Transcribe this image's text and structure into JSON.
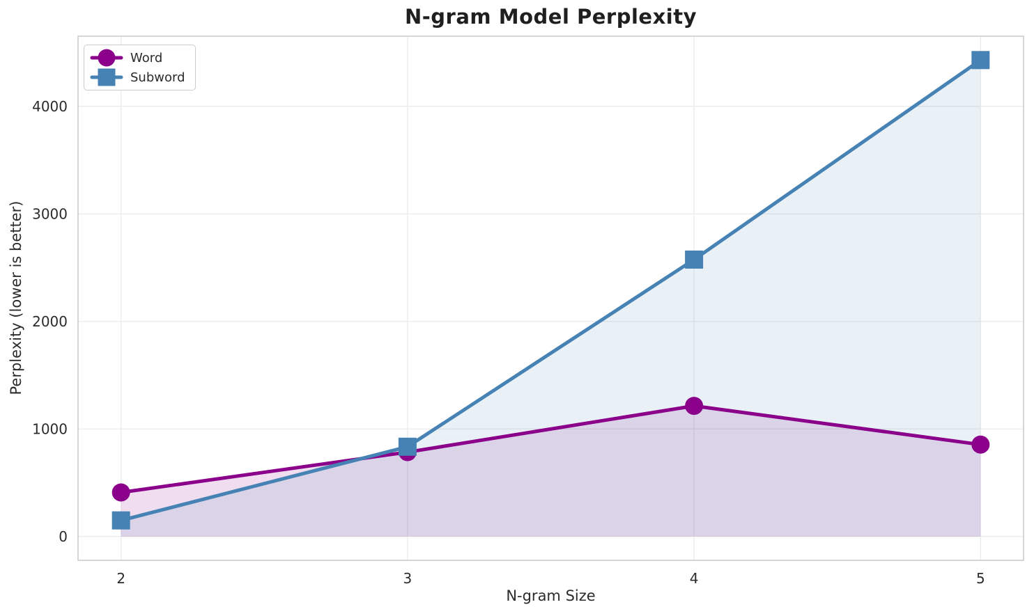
{
  "chart_data": {
    "type": "line",
    "title": "N-gram Model Perplexity",
    "xlabel": "N-gram Size",
    "ylabel": "Perplexity (lower is better)",
    "x": [
      2,
      3,
      4,
      5
    ],
    "series": [
      {
        "name": "Word",
        "values": [
          410,
          785,
          1215,
          855
        ],
        "color": "#8B008B",
        "marker": "circle",
        "fill_alpha": 0.13
      },
      {
        "name": "Subword",
        "values": [
          150,
          835,
          2575,
          4430
        ],
        "color": "#4682B4",
        "marker": "square",
        "fill_alpha": 0.12
      }
    ],
    "xticks": [
      2,
      3,
      4,
      5
    ],
    "yticks": [
      0,
      1000,
      2000,
      3000,
      4000
    ],
    "xlim": [
      1.85,
      5.15
    ],
    "ylim": [
      -221,
      4652
    ],
    "grid": true,
    "fill_to_zero": true,
    "legend_position": "upper left",
    "style": {
      "grid_color": "#ECECEC",
      "spine_color": "#C9C9C9",
      "text_color": "#2b2b2b",
      "background": "#ffffff"
    }
  }
}
